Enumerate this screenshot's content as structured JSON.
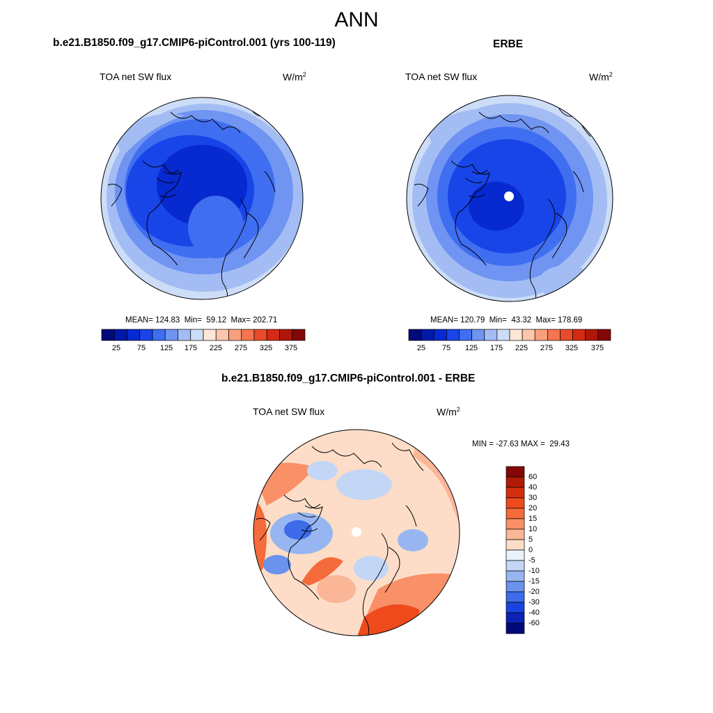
{
  "season": "ANN",
  "panel_model": {
    "title": "b.e21.B1850.f09_g17.CMIP6-piControl.001 (yrs 100-119)",
    "variable": "TOA net SW flux",
    "units_base": "W/m",
    "units_exp": "2",
    "stats": "MEAN= 124.83  Min=  59.12  Max= 202.71"
  },
  "panel_obs": {
    "title": "ERBE",
    "variable": "TOA net SW flux",
    "units_base": "W/m",
    "units_exp": "2",
    "stats": "MEAN= 120.79  Min=  43.32  Max= 178.69"
  },
  "panel_diff": {
    "title": "b.e21.B1850.f09_g17.CMIP6-piControl.001 - ERBE",
    "variable": "TOA net SW flux",
    "units_base": "W/m",
    "units_exp": "2",
    "stats": "MIN = -27.63 MAX =  29.43"
  },
  "colorbar_abs": {
    "tick_labels": [
      "25",
      "75",
      "125",
      "175",
      "225",
      "275",
      "325",
      "375"
    ],
    "colors": [
      "#000a7a",
      "#0019a8",
      "#0629d0",
      "#1845e8",
      "#3f6ef0",
      "#6f94f2",
      "#a3bdf4",
      "#cdddf7",
      "#fde6d6",
      "#fbc6ac",
      "#f89f7e",
      "#f37551",
      "#e84a2c",
      "#d42a14",
      "#b0160a",
      "#830805"
    ]
  },
  "colorbar_diff": {
    "tick_labels": [
      "60",
      "40",
      "30",
      "20",
      "15",
      "10",
      "5",
      "0",
      "-5",
      "-10",
      "-15",
      "-20",
      "-30",
      "-40",
      "-60"
    ],
    "colors": [
      "#830805",
      "#b01b08",
      "#d4300f",
      "#ee4a1c",
      "#f56b3c",
      "#f99067",
      "#fbb597",
      "#fdddc7",
      "#eaf1fb",
      "#c3d6f6",
      "#97b6f1",
      "#6a93ee",
      "#3d6be9",
      "#1a44df",
      "#0a23b6",
      "#000a7a"
    ]
  }
}
